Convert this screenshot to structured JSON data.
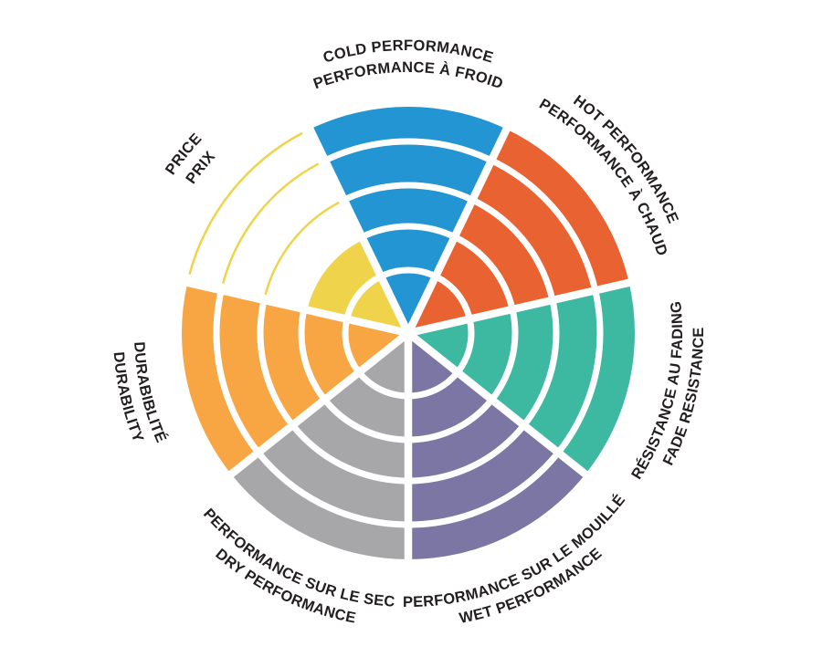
{
  "chart_data": {
    "type": "polar-sector-wheel",
    "rings_per_sector": 5,
    "max_value": 5,
    "background_color": "#FFFFFF",
    "divider_color": "#FFFFFF",
    "label_color": "#231F20",
    "legend_position": "around-rim",
    "categories": [
      {
        "id": "cold",
        "label_en": "COLD PERFORMANCE",
        "label_fr": "PERFORMANCE À FROID",
        "value": 5,
        "color": "#2295D2",
        "mid_angle_deg": 0,
        "label_flipped": false
      },
      {
        "id": "hot",
        "label_en": "HOT PERFORMANCE",
        "label_fr": "PERFORMANCE À CHAUD",
        "value": 5,
        "color": "#E96231",
        "mid_angle_deg": 51.43,
        "label_flipped": false
      },
      {
        "id": "fade",
        "label_en": "FADE RESISTANCE",
        "label_fr": "RÉSISTANCE AU FADING",
        "value": 5,
        "color": "#3CB9A0",
        "mid_angle_deg": 102.86,
        "label_flipped": true
      },
      {
        "id": "wet",
        "label_en": "WET PERFORMANCE",
        "label_fr": "PERFORMANCE SUR LE MOUILLÉ",
        "value": 5,
        "color": "#7B76A4",
        "mid_angle_deg": 154.29,
        "label_flipped": true
      },
      {
        "id": "dry",
        "label_en": "DRY PERFORMANCE",
        "label_fr": "PERFORMANCE SUR LE SEC",
        "value": 5,
        "color": "#A7A7A9",
        "mid_angle_deg": 205.71,
        "label_flipped": true
      },
      {
        "id": "durability",
        "label_en": "DURABILITY",
        "label_fr": "DURABIBLITÉ",
        "value": 5,
        "color": "#F7A643",
        "mid_angle_deg": 257.14,
        "label_flipped": true
      },
      {
        "id": "price",
        "label_en": "PRICE",
        "label_fr": "PRIX",
        "value": 2,
        "color": "#EFD44B",
        "mid_angle_deg": 308.57,
        "label_flipped": false
      }
    ]
  }
}
